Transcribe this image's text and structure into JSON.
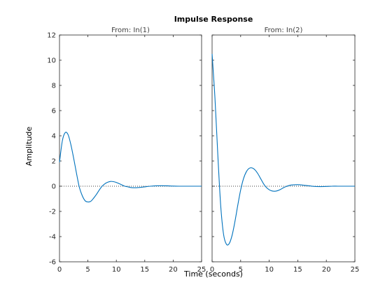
{
  "chart_data": {
    "type": "line",
    "title": "Impulse Response",
    "xlabel": "Time (seconds)",
    "ylabel": "Amplitude",
    "xlim": [
      0,
      25
    ],
    "ylim": [
      -6,
      12
    ],
    "x_ticks": [
      "0",
      "5",
      "10",
      "15",
      "20",
      "25"
    ],
    "y_ticks": [
      "-6",
      "-4",
      "-2",
      "0",
      "2",
      "4",
      "6",
      "8",
      "10",
      "12"
    ],
    "line_color": "#0072bd",
    "zero_line_color": "#000000",
    "grid": false,
    "panels": [
      {
        "subtitle": "From: In(1)",
        "x": [
          0,
          0.5,
          1,
          1.5,
          2,
          2.5,
          3,
          3.5,
          4,
          4.5,
          5,
          5.5,
          6,
          6.5,
          7,
          7.5,
          8,
          8.5,
          9,
          9.5,
          10,
          10.5,
          11,
          11.5,
          12,
          12.5,
          13,
          13.5,
          14,
          14.5,
          15,
          16,
          17,
          18,
          19,
          20,
          21,
          22,
          23,
          24,
          25
        ],
        "y": [
          1.9,
          3.6,
          4.25,
          4.1,
          3.3,
          2.2,
          1.0,
          -0.1,
          -0.75,
          -1.15,
          -1.25,
          -1.2,
          -0.95,
          -0.65,
          -0.3,
          0.0,
          0.2,
          0.32,
          0.38,
          0.36,
          0.3,
          0.2,
          0.1,
          0.0,
          -0.05,
          -0.1,
          -0.12,
          -0.12,
          -0.1,
          -0.08,
          -0.05,
          0.0,
          0.03,
          0.04,
          0.03,
          0.01,
          0.0,
          0.0,
          0.0,
          0.0,
          0.0
        ]
      },
      {
        "subtitle": "From: In(2)",
        "x": [
          0,
          0.5,
          1,
          1.5,
          2,
          2.5,
          3,
          3.5,
          4,
          4.5,
          5,
          5.5,
          6,
          6.5,
          7,
          7.5,
          8,
          8.5,
          9,
          9.5,
          10,
          10.5,
          11,
          11.5,
          12,
          12.5,
          13,
          13.5,
          14,
          15,
          16,
          17,
          18,
          19,
          20,
          21,
          22,
          23,
          24,
          25
        ],
        "y": [
          10.5,
          7.0,
          2.5,
          -1.5,
          -3.8,
          -4.6,
          -4.55,
          -3.9,
          -2.8,
          -1.5,
          -0.3,
          0.6,
          1.15,
          1.42,
          1.45,
          1.3,
          1.0,
          0.6,
          0.2,
          -0.1,
          -0.28,
          -0.38,
          -0.4,
          -0.35,
          -0.25,
          -0.12,
          -0.02,
          0.06,
          0.1,
          0.12,
          0.08,
          0.03,
          -0.02,
          -0.03,
          -0.02,
          0.0,
          0.0,
          0.0,
          0.0,
          0.0
        ]
      }
    ]
  }
}
